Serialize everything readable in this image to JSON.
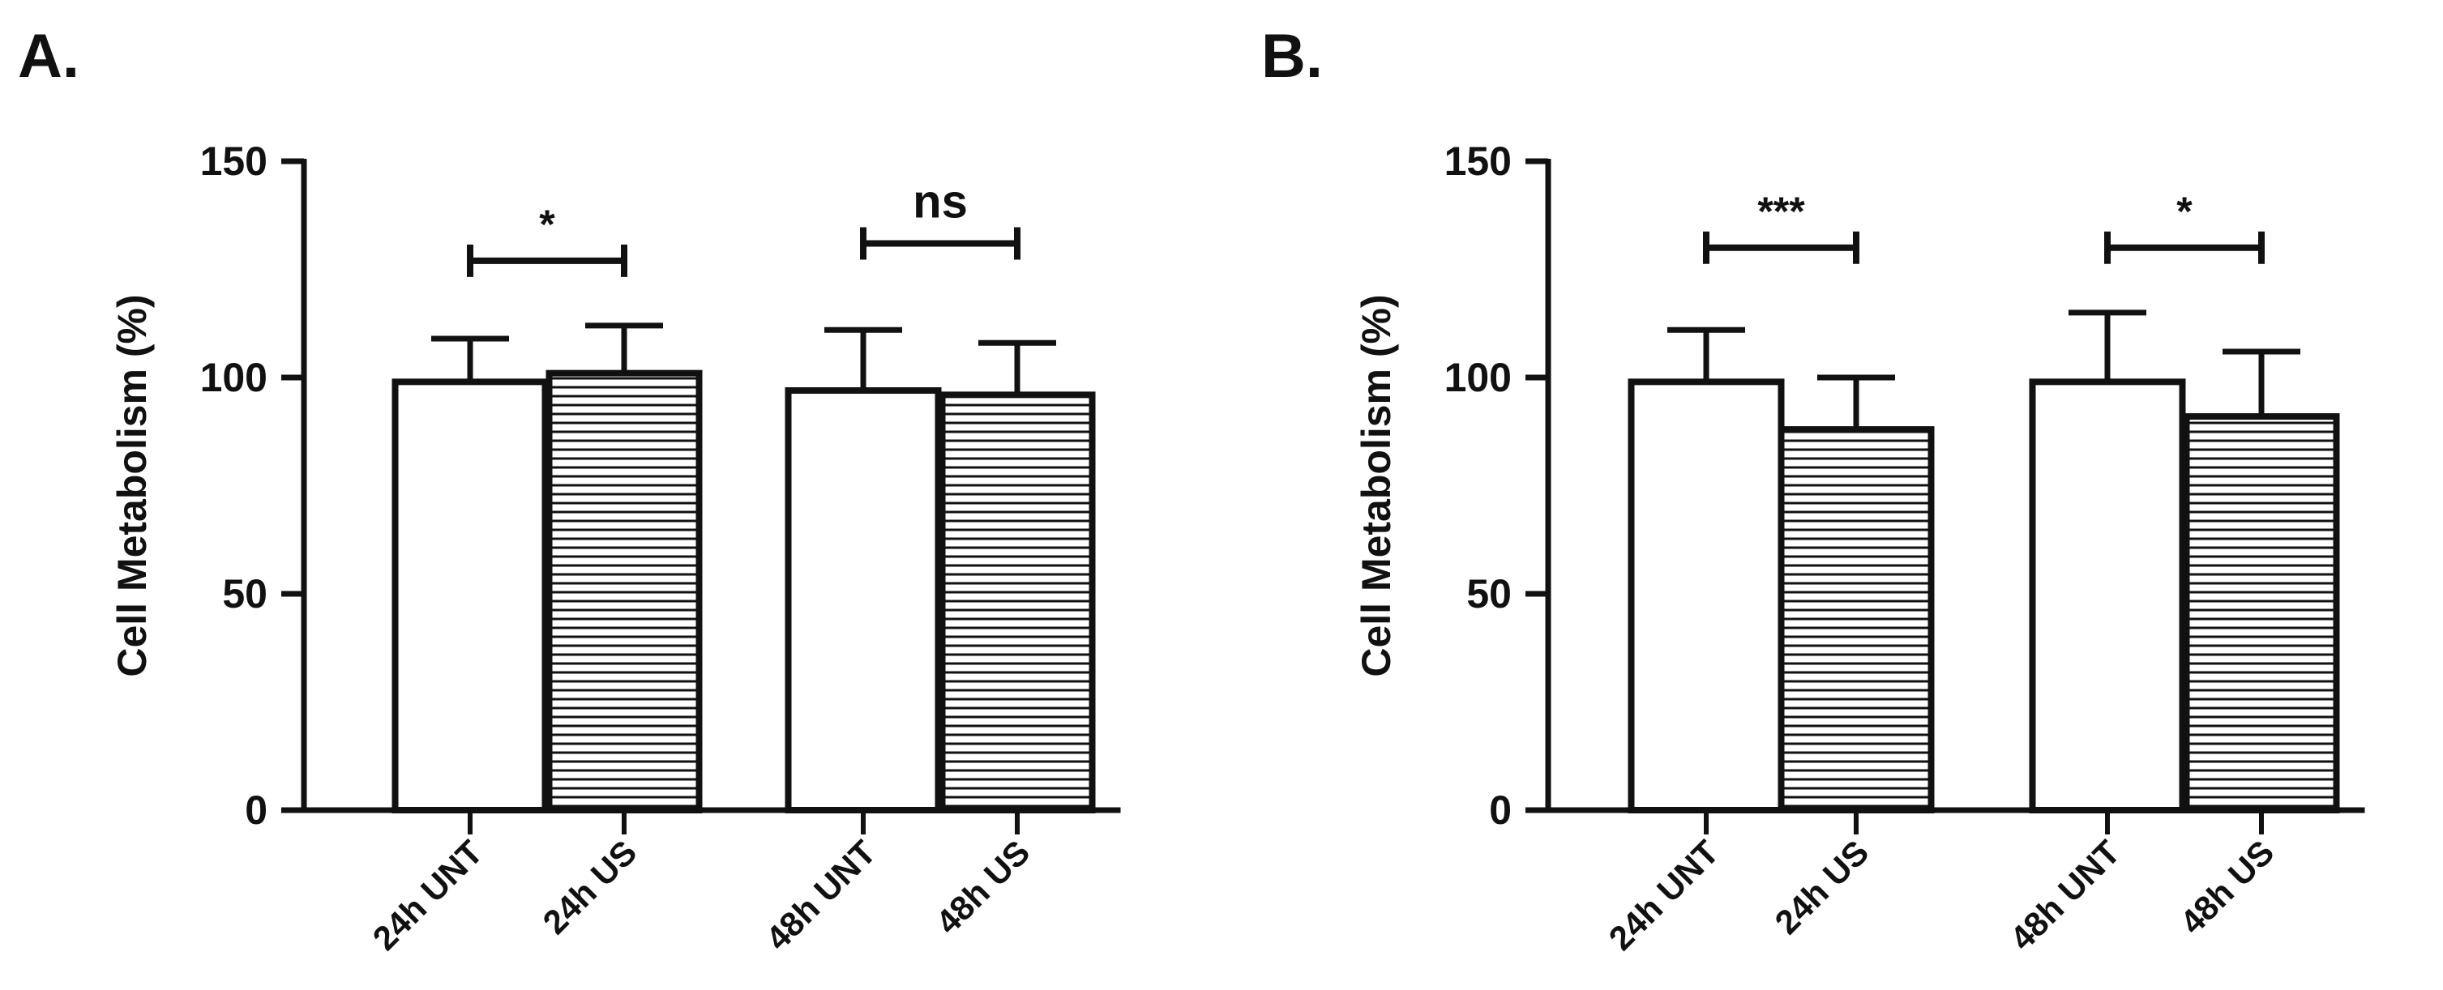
{
  "chart_data": [
    {
      "panel_label": "A.",
      "type": "bar",
      "ylabel": "Cell Metabolism (%)",
      "ylim": [
        0,
        150
      ],
      "yticks": [
        0,
        50,
        100,
        150
      ],
      "categories": [
        "24h UNT",
        "24h US",
        "48h UNT",
        "48h US"
      ],
      "values": [
        99,
        101,
        97,
        96
      ],
      "errors": [
        10,
        11,
        14,
        12
      ],
      "fills": [
        "white",
        "hatched",
        "white",
        "hatched"
      ],
      "comparisons": [
        {
          "from": 0,
          "to": 1,
          "label": "*",
          "y": 127
        },
        {
          "from": 2,
          "to": 3,
          "label": "ns",
          "y": 131
        }
      ]
    },
    {
      "panel_label": "B.",
      "type": "bar",
      "ylabel": "Cell Metabolism (%)",
      "ylim": [
        0,
        150
      ],
      "yticks": [
        0,
        50,
        100,
        150
      ],
      "categories": [
        "24h UNT",
        "24h US",
        "48h UNT",
        "48h US"
      ],
      "values": [
        99,
        88,
        99,
        91
      ],
      "errors": [
        12,
        12,
        16,
        15
      ],
      "fills": [
        "white",
        "hatched",
        "white",
        "hatched"
      ],
      "comparisons": [
        {
          "from": 0,
          "to": 1,
          "label": "***",
          "y": 130
        },
        {
          "from": 2,
          "to": 3,
          "label": "*",
          "y": 130
        }
      ]
    }
  ],
  "colors": {
    "ink": "#111111",
    "background": "#ffffff"
  }
}
